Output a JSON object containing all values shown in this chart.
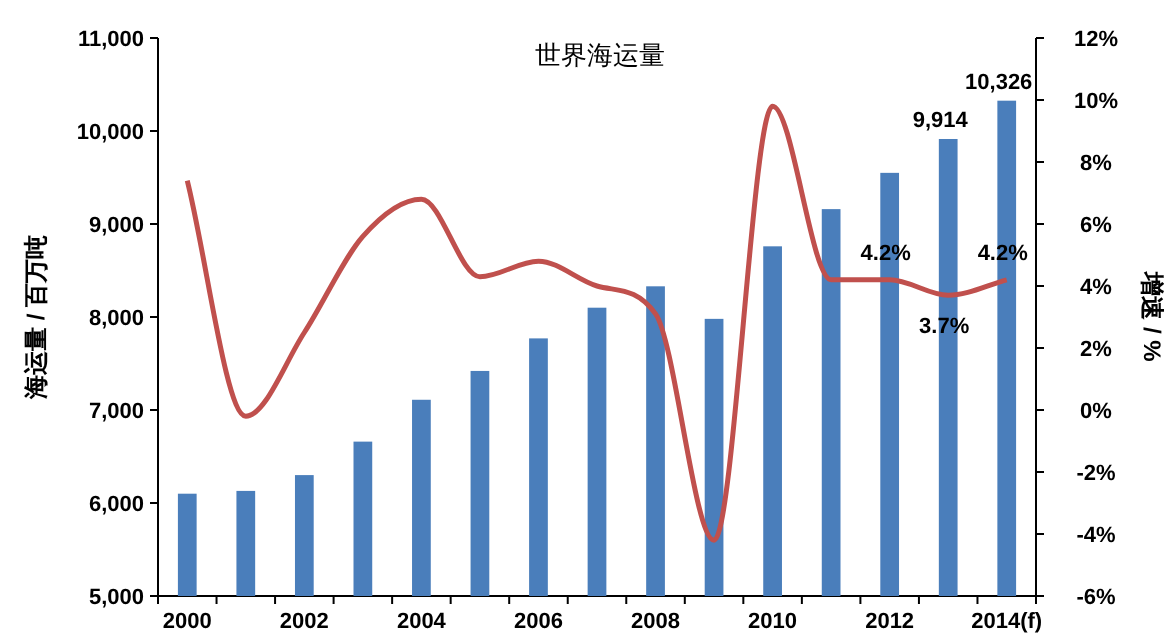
{
  "chart_data": {
    "type": "bar",
    "title": "世界海运量",
    "ylabel": "海运量 / 百万吨",
    "y2label": "增速 / %",
    "categories": [
      "2000",
      null,
      "2002",
      null,
      "2004",
      null,
      "2006",
      null,
      "2008",
      null,
      "2010",
      null,
      "2012",
      null,
      "2014(f)"
    ],
    "ylim": [
      5000,
      11000
    ],
    "yticks": [
      {
        "value": 5000,
        "label": "5,000"
      },
      {
        "value": 6000,
        "label": "6,000"
      },
      {
        "value": 7000,
        "label": "7,000"
      },
      {
        "value": 8000,
        "label": "8,000"
      },
      {
        "value": 9000,
        "label": "9,000"
      },
      {
        "value": 10000,
        "label": "10,000"
      },
      {
        "value": 11000,
        "label": "11,000"
      }
    ],
    "y2lim": [
      -6,
      12
    ],
    "y2ticks": [
      {
        "value": -6,
        "label": "-6%"
      },
      {
        "value": -4,
        "label": "-4%"
      },
      {
        "value": -2,
        "label": "-2%"
      },
      {
        "value": 0,
        "label": "0%"
      },
      {
        "value": 2,
        "label": "2%"
      },
      {
        "value": 4,
        "label": "4%"
      },
      {
        "value": 6,
        "label": "6%"
      },
      {
        "value": 8,
        "label": "8%"
      },
      {
        "value": 10,
        "label": "10%"
      },
      {
        "value": 12,
        "label": "12%"
      }
    ],
    "series": [
      {
        "color": "#4a7ebb",
        "values": [
          6100,
          6130,
          6300,
          6660,
          7110,
          7420,
          7770,
          8100,
          8330,
          7980,
          8760,
          9160,
          9550,
          9914,
          10326
        ],
        "value_labels": [
          null,
          null,
          null,
          null,
          null,
          null,
          null,
          null,
          null,
          null,
          null,
          null,
          null,
          "9,914",
          "10,326"
        ]
      },
      {
        "type": "line",
        "axis": "y2",
        "color": "#c0504d",
        "values": [
          7.4,
          -0.2,
          2.5,
          5.6,
          6.8,
          4.3,
          4.8,
          4.0,
          3.1,
          -4.2,
          9.8,
          4.2,
          4.2,
          3.7,
          4.2
        ],
        "value_labels": [
          null,
          null,
          null,
          null,
          null,
          null,
          null,
          null,
          null,
          null,
          null,
          null,
          "4.2%",
          "3.7%",
          "4.2%"
        ]
      }
    ],
    "grid": false
  }
}
